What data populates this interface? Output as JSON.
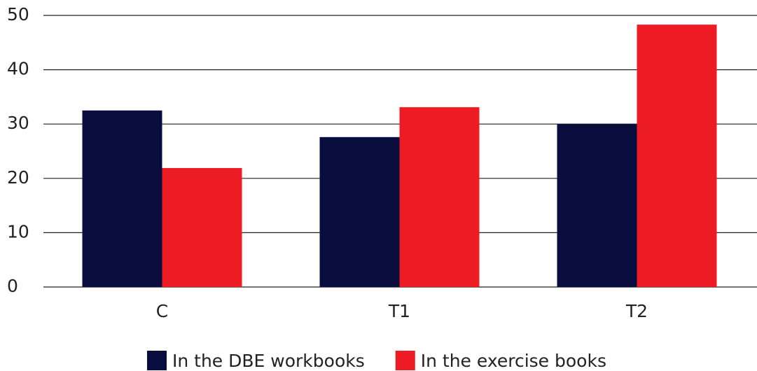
{
  "chart_data": {
    "type": "bar",
    "categories": [
      "C",
      "T1",
      "T2"
    ],
    "series": [
      {
        "name": "In the DBE workbooks",
        "color": "#0a0e3f",
        "values": [
          32.5,
          27.6,
          30.0
        ]
      },
      {
        "name": "In the exercise books",
        "color": "#ed1c24",
        "values": [
          21.9,
          33.1,
          48.3
        ]
      }
    ],
    "ylim": [
      0,
      50
    ],
    "yticks": [
      0,
      10,
      20,
      30,
      40,
      50
    ],
    "grid": true,
    "legend": "bottom"
  }
}
